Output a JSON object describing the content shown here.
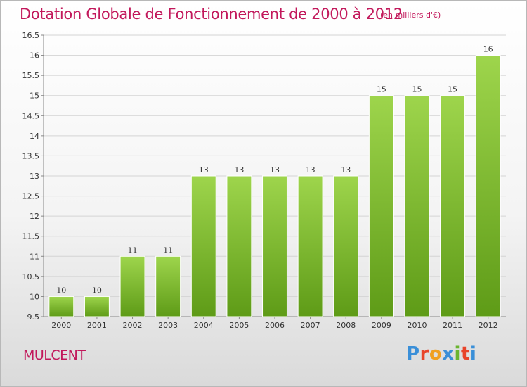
{
  "title": "Dotation Globale de Fonctionnement de 2000 à 2012",
  "subtitle": "(en milliers d'€)",
  "commune": "MULCENT",
  "logo": {
    "text": "Proxiti",
    "colors": [
      "#3a8fd8",
      "#e8442a",
      "#f0a020",
      "#3a8fd8",
      "#6ab530",
      "#e8442a",
      "#3a8fd8"
    ]
  },
  "colors": {
    "bar_top": "#9ed54c",
    "bar_bottom": "#5e9b17",
    "title": "#c2185b"
  },
  "chart_data": {
    "type": "bar",
    "title": "Dotation Globale de Fonctionnement de 2000 à 2012",
    "subtitle": "(en milliers d'€)",
    "categories": [
      "2000",
      "2001",
      "2002",
      "2003",
      "2004",
      "2005",
      "2006",
      "2007",
      "2008",
      "2009",
      "2010",
      "2011",
      "2012"
    ],
    "values": [
      10,
      10,
      11,
      11,
      13,
      13,
      13,
      13,
      13,
      15,
      15,
      15,
      16
    ],
    "value_labels": [
      "10",
      "10",
      "11",
      "11",
      "13",
      "13",
      "13",
      "13",
      "13",
      "15",
      "15",
      "15",
      "16"
    ],
    "xlabel": "",
    "ylabel": "",
    "ylim": [
      9.5,
      16.5
    ],
    "yticks": [
      9.5,
      10,
      10.5,
      11,
      11.5,
      12,
      12.5,
      13,
      13.5,
      14,
      14.5,
      15,
      15.5,
      16,
      16.5
    ],
    "ytick_labels": [
      "9.5",
      "10",
      "10.5",
      "11",
      "11.5",
      "12",
      "12.5",
      "13",
      "13.5",
      "14",
      "14.5",
      "15",
      "15.5",
      "16",
      "16.5"
    ],
    "grid": true,
    "legend": "none"
  }
}
